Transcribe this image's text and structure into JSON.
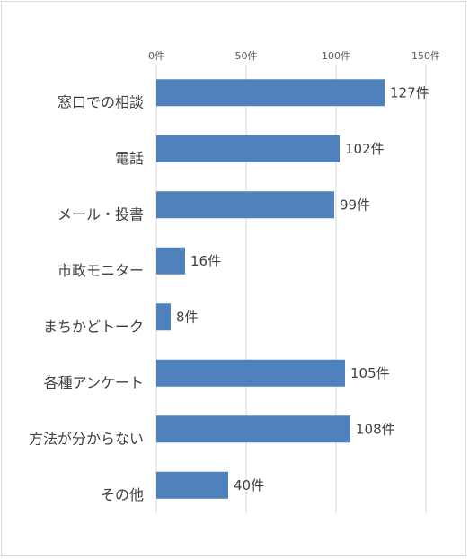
{
  "chart_data": {
    "type": "bar",
    "orientation": "horizontal",
    "categories": [
      "窓口での相談",
      "電話",
      "メール・投書",
      "市政モニター",
      "まちかどトーク",
      "各種アンケート",
      "方法が分からない",
      "その他"
    ],
    "values": [
      127,
      102,
      99,
      16,
      8,
      105,
      108,
      40
    ],
    "data_labels": [
      "127件",
      "102件",
      "99件",
      "16件",
      "8件",
      "105件",
      "108件",
      "40件"
    ],
    "xlim": [
      0,
      150
    ],
    "xticks": [
      0,
      50,
      100,
      150
    ],
    "xtick_labels": [
      "0件",
      "50件",
      "100件",
      "150件"
    ],
    "x_axis_position": "top",
    "grid": "vertical",
    "bar_color": "#4f81bd",
    "title": "",
    "xlabel": "",
    "ylabel": ""
  }
}
